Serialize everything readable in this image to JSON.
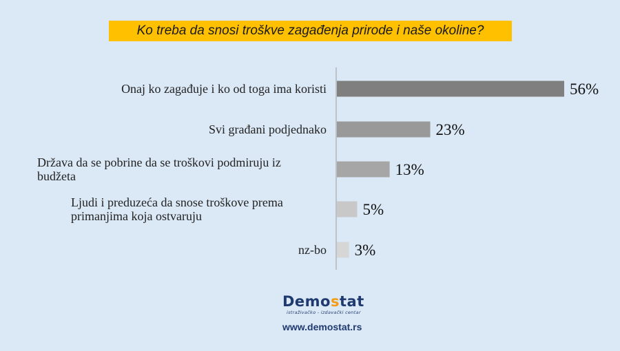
{
  "chart_data": {
    "type": "bar",
    "orientation": "horizontal",
    "title": "Ko treba da snosi troškve zagađenja prirode i naše okoline?",
    "categories": [
      [
        "Onaj ko zagađuje i ko od toga ima koristi"
      ],
      [
        "Svi građani podjednako"
      ],
      [
        "Država da se pobrine da se troškovi podmiruju iz",
        "budžeta"
      ],
      [
        "Ljudi i preduzeća da snose troškove prema",
        "primanjima koja ostvaruju"
      ],
      [
        "nz-bo"
      ]
    ],
    "values": [
      56,
      23,
      13,
      5,
      3
    ],
    "value_labels": [
      "56%",
      "23%",
      "13%",
      "5%",
      "3%"
    ],
    "colors": [
      "#7f7f7f",
      "#999999",
      "#a6a6a6",
      "#c8c8c8",
      "#d6d6d6"
    ],
    "xlim": [
      0,
      56
    ]
  },
  "brand": {
    "name_part1": "Demo",
    "name_part2": "s",
    "name_part3": "tat",
    "subtitle": "istraživačko - izdavački centar",
    "url": "www.demostat.rs"
  }
}
